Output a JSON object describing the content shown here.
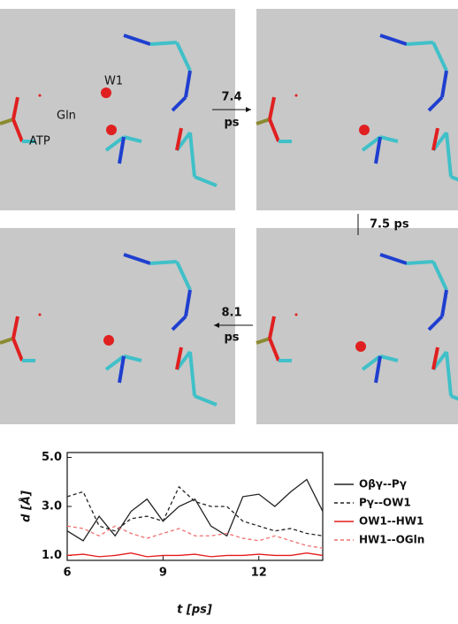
{
  "panels": [
    {
      "labels": [
        "W1",
        "Gln",
        "ATP"
      ]
    },
    {
      "labels": []
    },
    {
      "labels": []
    },
    {
      "labels": []
    }
  ],
  "arrows": [
    "7.4",
    "ps",
    "7.5 ps",
    "8.1",
    "ps"
  ],
  "chart_data": {
    "type": "line",
    "x_label": "t  [ps]",
    "y_label": "d  [Å]",
    "x": [
      6,
      6.5,
      7,
      7.5,
      8,
      8.5,
      9,
      9.5,
      10,
      10.5,
      11,
      11.5,
      12,
      12.5,
      13,
      13.5,
      14
    ],
    "series": [
      {
        "name": "Oβγ--Pγ",
        "color": "#222222",
        "dash": false,
        "values": [
          2.0,
          1.6,
          2.6,
          1.8,
          2.8,
          3.3,
          2.4,
          3.0,
          3.3,
          2.2,
          1.8,
          3.4,
          3.5,
          3.0,
          3.6,
          4.1,
          2.8
        ]
      },
      {
        "name": "Pγ--OW1",
        "color": "#222222",
        "dash": true,
        "values": [
          3.4,
          3.6,
          2.2,
          2.0,
          2.5,
          2.6,
          2.4,
          3.8,
          3.2,
          3.0,
          3.0,
          2.4,
          2.2,
          2.0,
          2.1,
          1.9,
          1.8
        ]
      },
      {
        "name": "OW1--HW1",
        "color": "#e41a1c",
        "dash": false,
        "values": [
          1.0,
          1.05,
          0.95,
          1.0,
          1.1,
          0.95,
          1.0,
          1.0,
          1.05,
          0.95,
          1.0,
          1.0,
          1.05,
          1.0,
          1.0,
          1.1,
          1.0
        ]
      },
      {
        "name": "HW1--OGln",
        "color": "#f07070",
        "dash": true,
        "values": [
          2.2,
          2.1,
          1.8,
          2.2,
          1.9,
          1.7,
          1.9,
          2.1,
          1.8,
          1.8,
          1.9,
          1.7,
          1.6,
          1.8,
          1.6,
          1.4,
          1.3
        ]
      }
    ],
    "xlim": [
      6,
      14
    ],
    "ylim": [
      0.8,
      5.2
    ],
    "xticks": [
      6,
      9,
      12
    ],
    "yticks": [
      {
        "value": 1,
        "label": "1.0"
      },
      {
        "value": 3,
        "label": "3.0"
      },
      {
        "value": 5,
        "label": "5.0"
      }
    ],
    "legend": "right"
  }
}
